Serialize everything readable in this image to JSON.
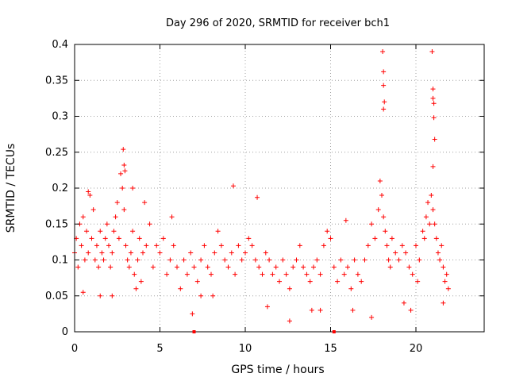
{
  "chart_data": {
    "type": "scatter",
    "title": "Day 296 of 2020, SRMTID for receiver bch1",
    "xlabel": "GPS time / hours",
    "ylabel": "SRMTID / TECUs",
    "xlim": [
      0,
      24
    ],
    "ylim": [
      0,
      0.4
    ],
    "x_ticks": [
      0,
      5,
      10,
      15,
      20
    ],
    "y_ticks": [
      0,
      0.05,
      0.1,
      0.15,
      0.2,
      0.25,
      0.3,
      0.35,
      0.4
    ],
    "x_tick_labels": [
      "0",
      "5",
      "10",
      "15",
      "20"
    ],
    "y_tick_labels": [
      "0",
      "0.05",
      "0.1",
      "0.15",
      "0.2",
      "0.25",
      "0.3",
      "0.35",
      "0.4"
    ],
    "grid": true,
    "marker": "+",
    "color": "#ff0000",
    "series": [
      {
        "name": "SRMTID",
        "x": [
          0.0,
          0.1,
          0.2,
          0.3,
          0.4,
          0.5,
          0.6,
          0.7,
          0.8,
          0.9,
          1.0,
          1.1,
          1.2,
          1.3,
          1.4,
          1.5,
          1.6,
          1.7,
          1.8,
          1.9,
          2.0,
          2.1,
          2.2,
          2.3,
          2.4,
          2.5,
          2.6,
          2.7,
          2.8,
          2.9,
          3.0,
          3.1,
          3.2,
          3.3,
          3.4,
          3.5,
          3.6,
          3.7,
          3.8,
          3.9,
          4.0,
          4.2,
          4.4,
          4.6,
          4.8,
          5.0,
          5.2,
          5.4,
          5.6,
          5.8,
          6.0,
          6.2,
          6.4,
          6.6,
          6.8,
          7.0,
          7.2,
          7.4,
          7.6,
          7.8,
          8.0,
          8.2,
          8.4,
          8.6,
          8.8,
          9.0,
          9.2,
          9.4,
          9.6,
          9.8,
          10.0,
          10.2,
          10.4,
          10.6,
          10.8,
          11.0,
          11.2,
          11.4,
          11.6,
          11.8,
          12.0,
          12.2,
          12.4,
          12.6,
          12.8,
          13.0,
          13.2,
          13.4,
          13.6,
          13.8,
          14.0,
          14.2,
          14.4,
          14.6,
          14.8,
          15.0,
          15.2,
          15.4,
          15.6,
          15.8,
          16.0,
          16.2,
          16.4,
          16.6,
          16.8,
          17.0,
          17.2,
          17.4,
          17.6,
          17.8,
          17.9,
          18.0,
          18.1,
          18.2,
          18.3,
          18.4,
          18.5,
          18.6,
          18.8,
          19.0,
          19.2,
          19.4,
          19.6,
          19.8,
          20.0,
          20.2,
          20.4,
          20.6,
          20.7,
          20.8,
          20.9,
          21.0,
          21.1,
          21.2,
          21.3,
          21.4,
          21.5,
          21.6,
          21.7,
          21.8,
          21.9,
          2.85,
          2.9,
          2.95,
          18.05,
          18.1,
          18.1,
          18.15,
          18.1,
          20.95,
          21.0,
          21.0,
          21.05,
          21.05,
          21.1,
          21.0,
          0.5,
          0.8,
          1.5,
          2.2,
          3.4,
          4.1,
          5.7,
          6.9,
          7.4,
          8.1,
          9.3,
          10.7,
          11.3,
          12.6,
          13.9,
          14.4,
          15.9,
          16.3,
          17.4,
          19.3,
          19.7,
          20.1,
          20.5,
          21.6
        ],
        "y": [
          0.11,
          0.13,
          0.09,
          0.15,
          0.12,
          0.16,
          0.1,
          0.14,
          0.11,
          0.19,
          0.13,
          0.17,
          0.1,
          0.12,
          0.09,
          0.14,
          0.11,
          0.1,
          0.13,
          0.15,
          0.12,
          0.09,
          0.11,
          0.14,
          0.16,
          0.18,
          0.13,
          0.22,
          0.2,
          0.17,
          0.12,
          0.1,
          0.09,
          0.11,
          0.14,
          0.08,
          0.06,
          0.1,
          0.13,
          0.07,
          0.11,
          0.12,
          0.15,
          0.09,
          0.12,
          0.11,
          0.13,
          0.08,
          0.1,
          0.12,
          0.09,
          0.06,
          0.1,
          0.08,
          0.11,
          0.09,
          0.07,
          0.1,
          0.12,
          0.09,
          0.08,
          0.11,
          0.14,
          0.12,
          0.1,
          0.09,
          0.11,
          0.08,
          0.12,
          0.1,
          0.11,
          0.13,
          0.12,
          0.1,
          0.09,
          0.08,
          0.11,
          0.1,
          0.08,
          0.09,
          0.07,
          0.1,
          0.08,
          0.06,
          0.09,
          0.1,
          0.12,
          0.09,
          0.08,
          0.07,
          0.09,
          0.1,
          0.08,
          0.12,
          0.14,
          0.13,
          0.09,
          0.07,
          0.1,
          0.08,
          0.09,
          0.06,
          0.1,
          0.08,
          0.07,
          0.1,
          0.12,
          0.15,
          0.13,
          0.17,
          0.21,
          0.19,
          0.16,
          0.14,
          0.12,
          0.1,
          0.09,
          0.13,
          0.11,
          0.1,
          0.12,
          0.11,
          0.09,
          0.08,
          0.12,
          0.1,
          0.14,
          0.16,
          0.18,
          0.15,
          0.19,
          0.17,
          0.15,
          0.13,
          0.11,
          0.1,
          0.12,
          0.09,
          0.07,
          0.08,
          0.06,
          0.254,
          0.232,
          0.224,
          0.39,
          0.362,
          0.343,
          0.32,
          0.31,
          0.39,
          0.338,
          0.325,
          0.318,
          0.298,
          0.268,
          0.23,
          0.055,
          0.195,
          0.05,
          0.05,
          0.2,
          0.18,
          0.16,
          0.025,
          0.05,
          0.05,
          0.203,
          0.187,
          0.035,
          0.015,
          0.03,
          0.03,
          0.155,
          0.03,
          0.02,
          0.04,
          0.03,
          0.07,
          0.13,
          0.04
        ]
      }
    ],
    "special_ticks_x": [
      7.0,
      15.2
    ]
  }
}
